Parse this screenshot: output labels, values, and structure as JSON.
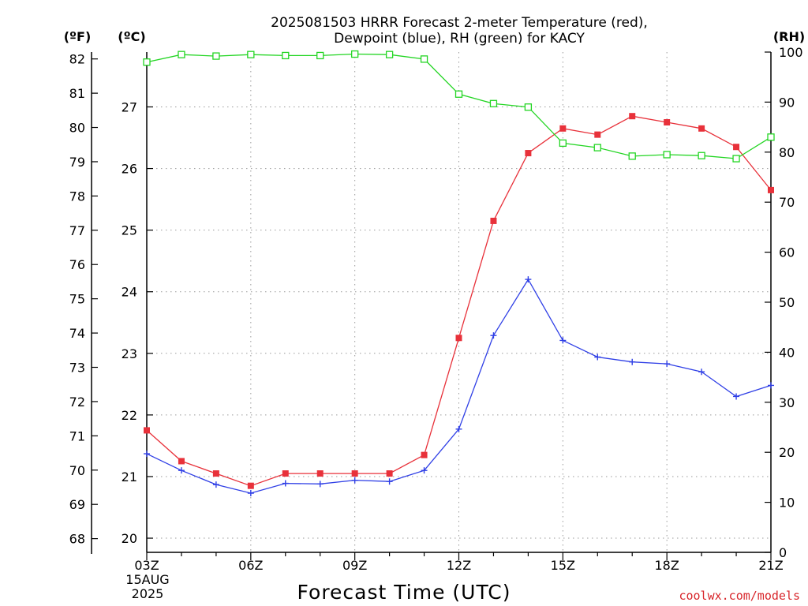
{
  "title_lines": [
    "2025081503 HRRR Forecast 2-meter Temperature (red),",
    "Dewpoint (blue), RH (green) for KACY"
  ],
  "units": {
    "fahrenheit": "(ºF)",
    "celsius": "(ºC)",
    "rh": "(RH)"
  },
  "xaxis": {
    "label": "Forecast Time (UTC)",
    "date_line1": "15AUG",
    "date_line2": "2025"
  },
  "credit": "coolwx.com/models",
  "colors": {
    "temperature": "#e8313a",
    "dewpoint": "#2f3fe6",
    "rh": "#22d522",
    "credit": "#d8262b"
  },
  "chart_data": {
    "type": "line",
    "title": "2025081503 HRRR Forecast 2-meter Temperature (red), Dewpoint (blue), RH (green) for KACY",
    "xlabel": "Forecast Time (UTC)",
    "x": [
      "03Z",
      "04Z",
      "05Z",
      "06Z",
      "07Z",
      "08Z",
      "09Z",
      "10Z",
      "11Z",
      "12Z",
      "13Z",
      "14Z",
      "15Z",
      "16Z",
      "17Z",
      "18Z",
      "19Z",
      "20Z",
      "21Z"
    ],
    "x_tick_labels": [
      "03Z",
      "06Z",
      "09Z",
      "12Z",
      "15Z",
      "18Z",
      "21Z"
    ],
    "grid": true,
    "axes": {
      "left_fahrenheit": {
        "ylim": [
          67.6,
          82.2
        ],
        "ticks": [
          68,
          69,
          70,
          71,
          72,
          73,
          74,
          75,
          76,
          77,
          78,
          79,
          80,
          81,
          82
        ]
      },
      "left_celsius": {
        "ylim": [
          19.77,
          27.89
        ],
        "ticks": [
          20,
          21,
          22,
          23,
          24,
          25,
          26,
          27
        ]
      },
      "right_rh": {
        "ylim": [
          0,
          100
        ],
        "ticks": [
          0,
          10,
          20,
          30,
          40,
          50,
          60,
          70,
          80,
          90,
          100
        ]
      }
    },
    "series": [
      {
        "name": "Temperature",
        "axis": "celsius",
        "marker": "filled-square",
        "values": [
          21.75,
          21.25,
          21.05,
          20.85,
          21.05,
          21.05,
          21.05,
          21.05,
          21.35,
          23.25,
          25.15,
          26.25,
          26.65,
          26.55,
          26.85,
          26.75,
          26.65,
          26.35,
          25.65
        ]
      },
      {
        "name": "Dewpoint",
        "axis": "celsius",
        "marker": "plus",
        "values": [
          21.37,
          21.1,
          20.87,
          20.73,
          20.89,
          20.88,
          20.94,
          20.92,
          21.1,
          21.77,
          23.29,
          24.2,
          23.21,
          22.94,
          22.86,
          22.83,
          22.7,
          22.3,
          22.48
        ]
      },
      {
        "name": "RH",
        "axis": "rh",
        "marker": "open-square",
        "values": [
          98,
          99.5,
          99.2,
          99.5,
          99.3,
          99.3,
          99.6,
          99.5,
          98.6,
          91.6,
          89.7,
          89.0,
          81.8,
          80.9,
          79.2,
          79.5,
          79.3,
          78.7,
          83.0
        ]
      }
    ]
  }
}
